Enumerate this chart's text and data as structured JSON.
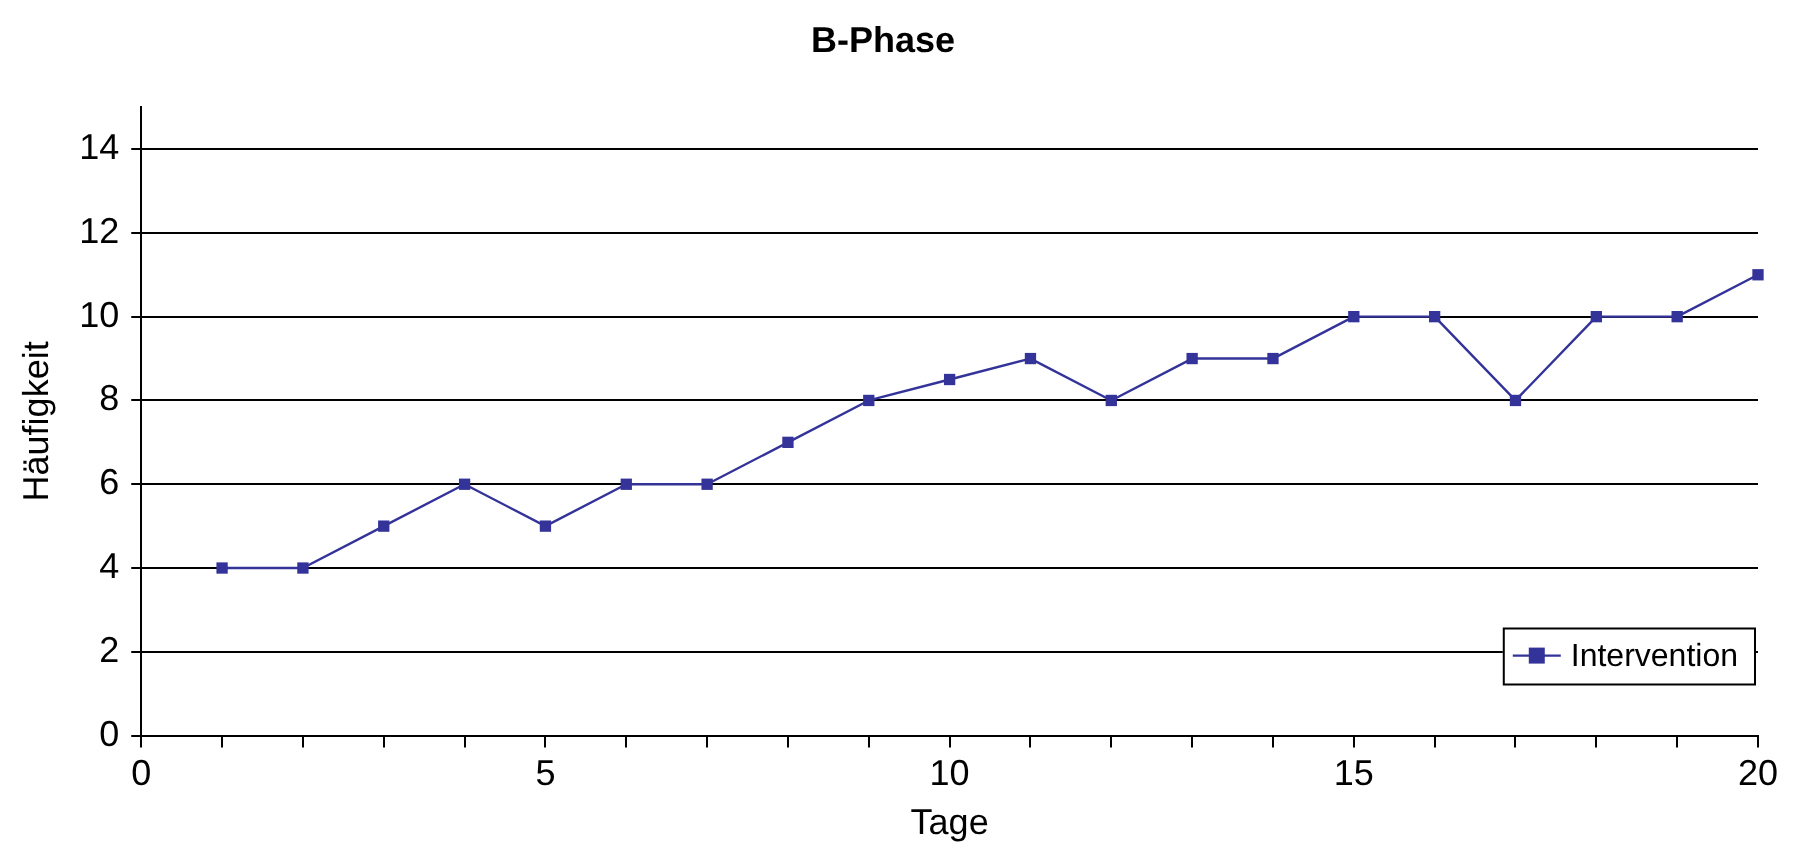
{
  "chart_data": {
    "type": "line",
    "title": "B-Phase",
    "xlabel": "Tage",
    "ylabel": "Häufigkeit",
    "x": [
      1,
      2,
      3,
      4,
      5,
      6,
      7,
      8,
      9,
      10,
      11,
      12,
      13,
      14,
      15,
      16,
      17,
      18,
      19,
      20
    ],
    "series": [
      {
        "name": "Intervention",
        "color": "#333399",
        "values": [
          4,
          4,
          5,
          6,
          5,
          6,
          6,
          7,
          8,
          8.5,
          9,
          8,
          9,
          9,
          10,
          10,
          8,
          10,
          10,
          11
        ]
      }
    ],
    "xlim": [
      0,
      20
    ],
    "xticks": [
      0,
      {
        "value": 1,
        "label": null
      },
      {
        "value": 2,
        "label": null
      },
      {
        "value": 3,
        "label": null
      },
      {
        "value": 4,
        "label": null
      },
      5,
      {
        "value": 6,
        "label": null
      },
      {
        "value": 7,
        "label": null
      },
      {
        "value": 8,
        "label": null
      },
      {
        "value": 9,
        "label": null
      },
      10,
      {
        "value": 11,
        "label": null
      },
      {
        "value": 12,
        "label": null
      },
      {
        "value": 13,
        "label": null
      },
      {
        "value": 14,
        "label": null
      },
      15,
      {
        "value": 16,
        "label": null
      },
      {
        "value": 17,
        "label": null
      },
      {
        "value": 18,
        "label": null
      },
      {
        "value": 19,
        "label": null
      },
      20
    ],
    "ylim": [
      0,
      15
    ],
    "yticks": [
      0,
      2,
      4,
      6,
      8,
      10,
      12,
      14
    ],
    "grid": "y",
    "legend": "bottom right",
    "marker": "square",
    "line_style": "solid"
  }
}
